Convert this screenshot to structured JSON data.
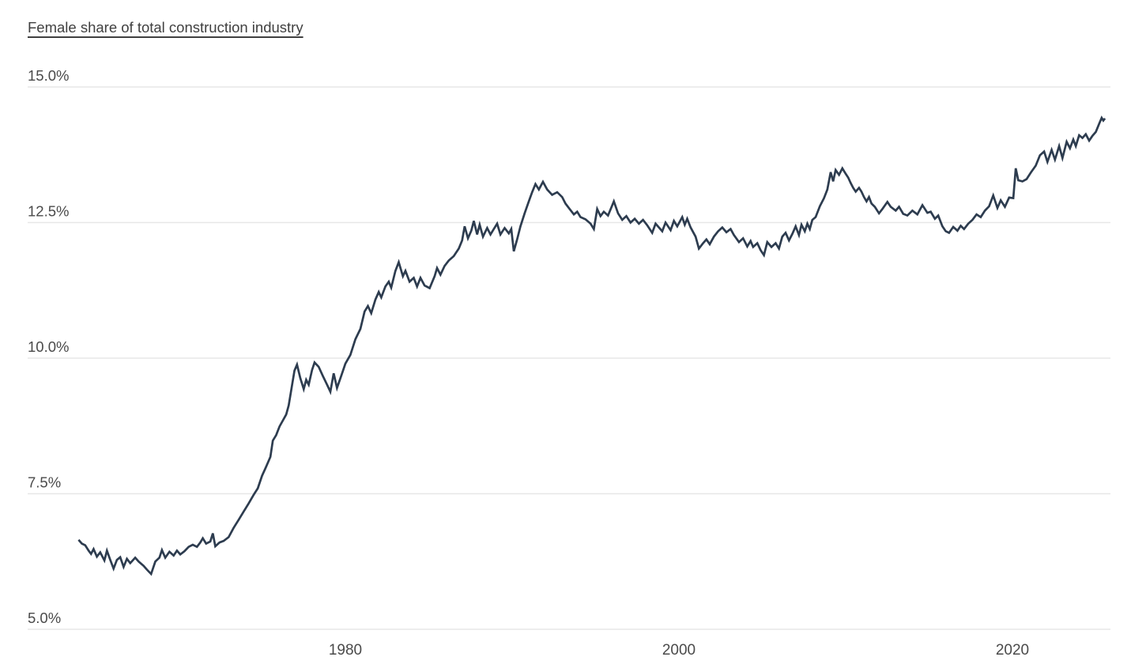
{
  "chart_data": {
    "type": "line",
    "title": "Female share of total construction industry",
    "units": "%",
    "legend": "none",
    "grid": "horizontal-only",
    "xlim": [
      1964.0,
      2025.6
    ],
    "ylim": [
      5.0,
      15.0
    ],
    "y_ticks": [
      {
        "label": "15.0%",
        "value": 15.0
      },
      {
        "label": "12.5%",
        "value": 12.5
      },
      {
        "label": "10.0%",
        "value": 10.0
      },
      {
        "label": "7.5%",
        "value": 7.5
      },
      {
        "label": "5.0%",
        "value": 5.0
      }
    ],
    "x_ticks": [
      {
        "label": "1980",
        "value": 1980
      },
      {
        "label": "2000",
        "value": 2000
      },
      {
        "label": "2020",
        "value": 2020
      }
    ],
    "colors": {
      "line": "#2d3c4f",
      "grid": "#e7e7e7",
      "tick_label": "#4a4a4a",
      "title": "#404040",
      "background": "#ffffff"
    },
    "series": [
      {
        "name": "Female share of total construction industry",
        "points": [
          [
            1964.0,
            6.65
          ],
          [
            1964.2,
            6.58
          ],
          [
            1964.4,
            6.55
          ],
          [
            1964.6,
            6.45
          ],
          [
            1964.75,
            6.39
          ],
          [
            1964.9,
            6.48
          ],
          [
            1965.1,
            6.34
          ],
          [
            1965.3,
            6.42
          ],
          [
            1965.55,
            6.27
          ],
          [
            1965.7,
            6.45
          ],
          [
            1965.9,
            6.28
          ],
          [
            1966.1,
            6.12
          ],
          [
            1966.3,
            6.28
          ],
          [
            1966.5,
            6.33
          ],
          [
            1966.7,
            6.15
          ],
          [
            1966.9,
            6.3
          ],
          [
            1967.1,
            6.22
          ],
          [
            1967.4,
            6.32
          ],
          [
            1967.6,
            6.25
          ],
          [
            1967.9,
            6.17
          ],
          [
            1968.1,
            6.1
          ],
          [
            1968.35,
            6.02
          ],
          [
            1968.6,
            6.25
          ],
          [
            1968.85,
            6.32
          ],
          [
            1969.0,
            6.46
          ],
          [
            1969.2,
            6.32
          ],
          [
            1969.45,
            6.43
          ],
          [
            1969.7,
            6.36
          ],
          [
            1969.9,
            6.45
          ],
          [
            1970.1,
            6.38
          ],
          [
            1970.35,
            6.44
          ],
          [
            1970.6,
            6.52
          ],
          [
            1970.85,
            6.56
          ],
          [
            1971.1,
            6.52
          ],
          [
            1971.3,
            6.6
          ],
          [
            1971.45,
            6.68
          ],
          [
            1971.65,
            6.58
          ],
          [
            1971.9,
            6.62
          ],
          [
            1972.05,
            6.77
          ],
          [
            1972.2,
            6.53
          ],
          [
            1972.45,
            6.6
          ],
          [
            1972.7,
            6.63
          ],
          [
            1973.0,
            6.7
          ],
          [
            1973.3,
            6.87
          ],
          [
            1973.6,
            7.02
          ],
          [
            1973.9,
            7.17
          ],
          [
            1974.2,
            7.32
          ],
          [
            1974.5,
            7.48
          ],
          [
            1974.75,
            7.6
          ],
          [
            1975.0,
            7.83
          ],
          [
            1975.25,
            8.0
          ],
          [
            1975.5,
            8.18
          ],
          [
            1975.65,
            8.48
          ],
          [
            1975.85,
            8.58
          ],
          [
            1976.05,
            8.74
          ],
          [
            1976.25,
            8.85
          ],
          [
            1976.45,
            8.96
          ],
          [
            1976.6,
            9.13
          ],
          [
            1976.8,
            9.5
          ],
          [
            1976.95,
            9.77
          ],
          [
            1977.1,
            9.88
          ],
          [
            1977.3,
            9.63
          ],
          [
            1977.5,
            9.43
          ],
          [
            1977.65,
            9.6
          ],
          [
            1977.8,
            9.51
          ],
          [
            1978.0,
            9.78
          ],
          [
            1978.15,
            9.92
          ],
          [
            1978.4,
            9.84
          ],
          [
            1978.65,
            9.67
          ],
          [
            1978.9,
            9.51
          ],
          [
            1979.1,
            9.38
          ],
          [
            1979.3,
            9.72
          ],
          [
            1979.5,
            9.45
          ],
          [
            1979.75,
            9.67
          ],
          [
            1980.0,
            9.9
          ],
          [
            1980.3,
            10.06
          ],
          [
            1980.6,
            10.35
          ],
          [
            1980.9,
            10.54
          ],
          [
            1981.15,
            10.86
          ],
          [
            1981.35,
            10.96
          ],
          [
            1981.55,
            10.83
          ],
          [
            1981.8,
            11.08
          ],
          [
            1982.0,
            11.22
          ],
          [
            1982.15,
            11.12
          ],
          [
            1982.4,
            11.32
          ],
          [
            1982.6,
            11.41
          ],
          [
            1982.75,
            11.3
          ],
          [
            1983.0,
            11.61
          ],
          [
            1983.2,
            11.77
          ],
          [
            1983.45,
            11.51
          ],
          [
            1983.6,
            11.61
          ],
          [
            1983.85,
            11.41
          ],
          [
            1984.1,
            11.48
          ],
          [
            1984.3,
            11.32
          ],
          [
            1984.5,
            11.48
          ],
          [
            1984.75,
            11.34
          ],
          [
            1985.05,
            11.29
          ],
          [
            1985.35,
            11.51
          ],
          [
            1985.5,
            11.66
          ],
          [
            1985.7,
            11.54
          ],
          [
            1985.95,
            11.7
          ],
          [
            1986.2,
            11.8
          ],
          [
            1986.5,
            11.88
          ],
          [
            1986.8,
            12.02
          ],
          [
            1987.0,
            12.17
          ],
          [
            1987.15,
            12.43
          ],
          [
            1987.35,
            12.21
          ],
          [
            1987.55,
            12.35
          ],
          [
            1987.7,
            12.53
          ],
          [
            1987.9,
            12.28
          ],
          [
            1988.05,
            12.46
          ],
          [
            1988.25,
            12.24
          ],
          [
            1988.5,
            12.4
          ],
          [
            1988.7,
            12.28
          ],
          [
            1988.9,
            12.38
          ],
          [
            1989.1,
            12.48
          ],
          [
            1989.3,
            12.28
          ],
          [
            1989.55,
            12.4
          ],
          [
            1989.8,
            12.3
          ],
          [
            1989.95,
            12.38
          ],
          [
            1990.1,
            11.97
          ],
          [
            1990.3,
            12.19
          ],
          [
            1990.5,
            12.43
          ],
          [
            1990.75,
            12.67
          ],
          [
            1991.0,
            12.89
          ],
          [
            1991.2,
            13.06
          ],
          [
            1991.4,
            13.21
          ],
          [
            1991.6,
            13.11
          ],
          [
            1991.85,
            13.25
          ],
          [
            1992.1,
            13.11
          ],
          [
            1992.4,
            13.01
          ],
          [
            1992.7,
            13.06
          ],
          [
            1993.0,
            12.97
          ],
          [
            1993.2,
            12.85
          ],
          [
            1993.45,
            12.75
          ],
          [
            1993.7,
            12.65
          ],
          [
            1993.9,
            12.7
          ],
          [
            1994.1,
            12.6
          ],
          [
            1994.4,
            12.56
          ],
          [
            1994.7,
            12.48
          ],
          [
            1994.9,
            12.38
          ],
          [
            1995.1,
            12.75
          ],
          [
            1995.3,
            12.62
          ],
          [
            1995.5,
            12.7
          ],
          [
            1995.75,
            12.63
          ],
          [
            1996.1,
            12.89
          ],
          [
            1996.35,
            12.67
          ],
          [
            1996.6,
            12.55
          ],
          [
            1996.85,
            12.62
          ],
          [
            1997.1,
            12.5
          ],
          [
            1997.35,
            12.57
          ],
          [
            1997.6,
            12.48
          ],
          [
            1997.85,
            12.55
          ],
          [
            1998.1,
            12.45
          ],
          [
            1998.4,
            12.31
          ],
          [
            1998.6,
            12.48
          ],
          [
            1999.0,
            12.34
          ],
          [
            1999.2,
            12.5
          ],
          [
            1999.5,
            12.36
          ],
          [
            1999.7,
            12.53
          ],
          [
            1999.9,
            12.43
          ],
          [
            2000.2,
            12.6
          ],
          [
            2000.35,
            12.46
          ],
          [
            2000.5,
            12.57
          ],
          [
            2000.7,
            12.41
          ],
          [
            2001.0,
            12.24
          ],
          [
            2001.2,
            12.02
          ],
          [
            2001.45,
            12.12
          ],
          [
            2001.65,
            12.19
          ],
          [
            2001.85,
            12.1
          ],
          [
            2002.1,
            12.24
          ],
          [
            2002.35,
            12.34
          ],
          [
            2002.6,
            12.41
          ],
          [
            2002.85,
            12.32
          ],
          [
            2003.1,
            12.38
          ],
          [
            2003.3,
            12.27
          ],
          [
            2003.6,
            12.14
          ],
          [
            2003.85,
            12.21
          ],
          [
            2004.1,
            12.06
          ],
          [
            2004.3,
            12.16
          ],
          [
            2004.45,
            12.05
          ],
          [
            2004.7,
            12.12
          ],
          [
            2004.9,
            11.99
          ],
          [
            2005.1,
            11.9
          ],
          [
            2005.3,
            12.14
          ],
          [
            2005.55,
            12.05
          ],
          [
            2005.8,
            12.12
          ],
          [
            2006.0,
            12.02
          ],
          [
            2006.2,
            12.24
          ],
          [
            2006.4,
            12.31
          ],
          [
            2006.6,
            12.17
          ],
          [
            2006.8,
            12.29
          ],
          [
            2007.0,
            12.43
          ],
          [
            2007.2,
            12.27
          ],
          [
            2007.35,
            12.46
          ],
          [
            2007.55,
            12.34
          ],
          [
            2007.7,
            12.48
          ],
          [
            2007.85,
            12.38
          ],
          [
            2008.0,
            12.55
          ],
          [
            2008.2,
            12.6
          ],
          [
            2008.45,
            12.8
          ],
          [
            2008.7,
            12.95
          ],
          [
            2008.9,
            13.11
          ],
          [
            2009.1,
            13.43
          ],
          [
            2009.25,
            13.26
          ],
          [
            2009.4,
            13.47
          ],
          [
            2009.6,
            13.38
          ],
          [
            2009.8,
            13.5
          ],
          [
            2010.0,
            13.4
          ],
          [
            2010.15,
            13.33
          ],
          [
            2010.3,
            13.23
          ],
          [
            2010.45,
            13.14
          ],
          [
            2010.6,
            13.07
          ],
          [
            2010.8,
            13.14
          ],
          [
            2010.95,
            13.07
          ],
          [
            2011.1,
            12.97
          ],
          [
            2011.25,
            12.89
          ],
          [
            2011.4,
            12.97
          ],
          [
            2011.55,
            12.85
          ],
          [
            2011.75,
            12.79
          ],
          [
            2012.0,
            12.67
          ],
          [
            2012.2,
            12.75
          ],
          [
            2012.5,
            12.88
          ],
          [
            2012.7,
            12.79
          ],
          [
            2013.0,
            12.72
          ],
          [
            2013.2,
            12.79
          ],
          [
            2013.45,
            12.66
          ],
          [
            2013.7,
            12.63
          ],
          [
            2014.0,
            12.72
          ],
          [
            2014.3,
            12.65
          ],
          [
            2014.6,
            12.82
          ],
          [
            2014.9,
            12.68
          ],
          [
            2015.1,
            12.7
          ],
          [
            2015.35,
            12.57
          ],
          [
            2015.55,
            12.63
          ],
          [
            2015.8,
            12.43
          ],
          [
            2016.0,
            12.34
          ],
          [
            2016.2,
            12.31
          ],
          [
            2016.45,
            12.42
          ],
          [
            2016.7,
            12.35
          ],
          [
            2016.9,
            12.44
          ],
          [
            2017.1,
            12.38
          ],
          [
            2017.35,
            12.48
          ],
          [
            2017.6,
            12.55
          ],
          [
            2017.85,
            12.65
          ],
          [
            2018.1,
            12.6
          ],
          [
            2018.35,
            12.72
          ],
          [
            2018.6,
            12.8
          ],
          [
            2018.85,
            13.0
          ],
          [
            2019.1,
            12.77
          ],
          [
            2019.3,
            12.91
          ],
          [
            2019.55,
            12.79
          ],
          [
            2019.8,
            12.96
          ],
          [
            2020.05,
            12.95
          ],
          [
            2020.2,
            13.5
          ],
          [
            2020.35,
            13.28
          ],
          [
            2020.6,
            13.26
          ],
          [
            2020.85,
            13.3
          ],
          [
            2021.1,
            13.42
          ],
          [
            2021.4,
            13.55
          ],
          [
            2021.65,
            13.74
          ],
          [
            2021.9,
            13.81
          ],
          [
            2022.1,
            13.62
          ],
          [
            2022.35,
            13.84
          ],
          [
            2022.55,
            13.66
          ],
          [
            2022.8,
            13.91
          ],
          [
            2023.0,
            13.69
          ],
          [
            2023.25,
            13.99
          ],
          [
            2023.45,
            13.87
          ],
          [
            2023.65,
            14.03
          ],
          [
            2023.8,
            13.91
          ],
          [
            2024.0,
            14.11
          ],
          [
            2024.2,
            14.06
          ],
          [
            2024.4,
            14.13
          ],
          [
            2024.6,
            14.01
          ],
          [
            2024.8,
            14.1
          ],
          [
            2025.0,
            14.17
          ],
          [
            2025.2,
            14.32
          ],
          [
            2025.35,
            14.43
          ],
          [
            2025.45,
            14.38
          ],
          [
            2025.55,
            14.42
          ]
        ]
      }
    ]
  }
}
